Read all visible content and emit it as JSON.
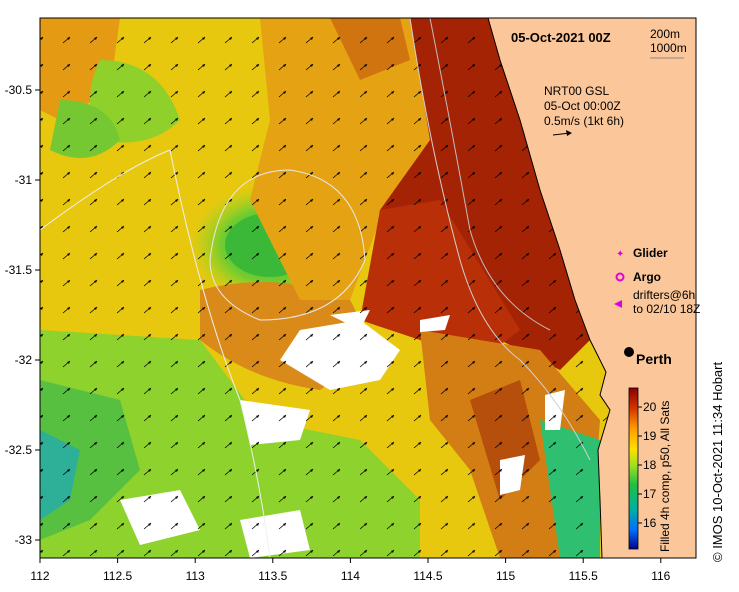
{
  "title": "05-Oct-2021 00Z",
  "contours": {
    "line1": "200m",
    "line2": "1000m"
  },
  "current_info": {
    "line1": "NRT00 GSL",
    "line2": "05-Oct 00:00Z",
    "line3": "0.5m/s (1kt 6h)"
  },
  "legend": {
    "glider": "Glider",
    "argo": "Argo",
    "drifters_line1": "drifters@6h",
    "drifters_line2": "to 02/10 18Z"
  },
  "city": "Perth",
  "colorbar": {
    "ticks": [
      "20",
      "19",
      "18",
      "17",
      "16"
    ],
    "label": "Filled 4h comp, p50, All Sats",
    "colors": {
      "high": "#8b0000",
      "mid": "#ffcc00",
      "low": "#00008b"
    }
  },
  "credit": "© IMOS 10-Oct-2021 11:34 Hobart",
  "axes": {
    "x_ticks": [
      "112",
      "112.5",
      "113",
      "113.5",
      "114",
      "114.5",
      "115",
      "115.5",
      "116"
    ],
    "y_ticks": [
      "-30.5",
      "-31",
      "-31.5",
      "-32",
      "-32.5",
      "-33"
    ]
  },
  "colors": {
    "land": "#fbc79a",
    "deep_red": "#9b1a05",
    "orange": "#e08a12",
    "yellow": "#f2d21a",
    "green": "#5ec63a"
  }
}
